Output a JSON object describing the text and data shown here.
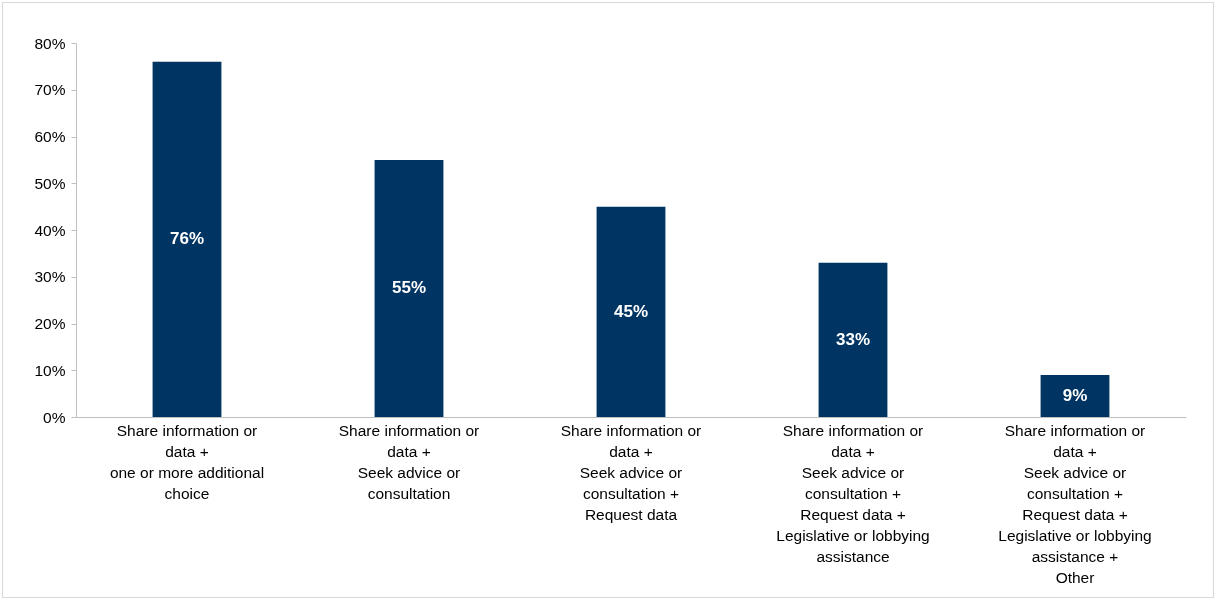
{
  "chart_data": {
    "type": "bar",
    "categories": [
      "Share information or\ndata +\none or more additional\nchoice",
      "Share information or\ndata +\nSeek advice or\nconsultation",
      "Share information or\ndata +\nSeek advice or\nconsultation +\nRequest data",
      "Share information or\ndata +\nSeek advice or\nconsultation +\nRequest data +\nLegislative or lobbying\nassistance",
      "Share information or\ndata +\nSeek advice or\nconsultation +\nRequest data +\nLegislative or lobbying\nassistance +\nOther"
    ],
    "values": [
      76,
      55,
      45,
      33,
      9
    ],
    "value_labels": [
      "76%",
      "55%",
      "45%",
      "33%",
      "9%"
    ],
    "color": "#003462",
    "ylim": [
      0,
      80
    ],
    "yticks": [
      {
        "value": 0,
        "label": "0%"
      },
      {
        "value": 10,
        "label": "10%"
      },
      {
        "value": 20,
        "label": "20%"
      },
      {
        "value": 30,
        "label": "30%"
      },
      {
        "value": 40,
        "label": "40%"
      },
      {
        "value": 50,
        "label": "50%"
      },
      {
        "value": 60,
        "label": "60%"
      },
      {
        "value": 70,
        "label": "70%"
      },
      {
        "value": 80,
        "label": "80%"
      }
    ],
    "grid": false
  }
}
